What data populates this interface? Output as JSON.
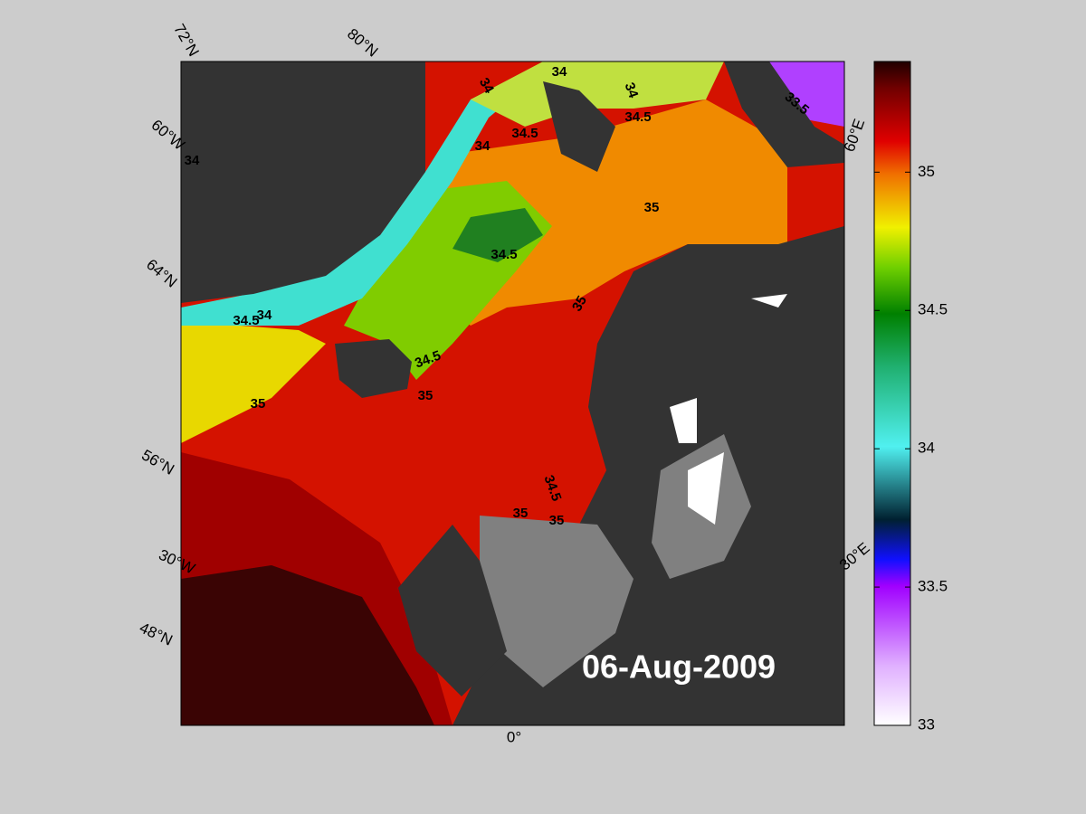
{
  "map": {
    "date": "06-Aug-2009",
    "graticule_labels": [
      "72°N",
      "80°N",
      "60°W",
      "64°N",
      "56°N",
      "30°W",
      "48°N",
      "0°",
      "30°E",
      "60°E"
    ],
    "contour_labels": [
      "34",
      "34",
      "34",
      "34.5",
      "33.5",
      "34.5",
      "34",
      "34",
      "35",
      "34.5",
      "35",
      "34.5",
      "34",
      "34.5",
      "35",
      "35",
      "34.5",
      "35",
      "35"
    ]
  },
  "colorbar": {
    "ylim": [
      33,
      35.4
    ],
    "ticks": [
      33,
      33.5,
      34,
      34.5,
      35
    ]
  }
}
